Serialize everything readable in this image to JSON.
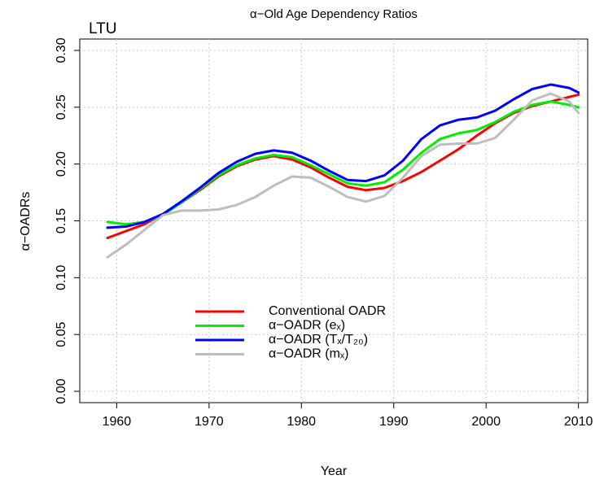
{
  "chart_data": {
    "type": "line",
    "title": "α−Old Age Dependency Ratios",
    "annotation": "LTU",
    "xlabel": "Year",
    "ylabel": "α−OADRs",
    "x": [
      1959,
      1961,
      1963,
      1965,
      1967,
      1969,
      1971,
      1973,
      1975,
      1977,
      1979,
      1981,
      1983,
      1985,
      1987,
      1989,
      1991,
      1993,
      1995,
      1997,
      1999,
      2001,
      2003,
      2005,
      2007,
      2009,
      2010
    ],
    "series": [
      {
        "name": "Conventional OADR",
        "color": "#ff0000",
        "values": [
          0.135,
          0.141,
          0.147,
          0.156,
          0.166,
          0.177,
          0.189,
          0.198,
          0.204,
          0.207,
          0.204,
          0.197,
          0.188,
          0.18,
          0.177,
          0.179,
          0.185,
          0.193,
          0.203,
          0.213,
          0.225,
          0.236,
          0.245,
          0.251,
          0.255,
          0.259,
          0.261
        ]
      },
      {
        "name": "α−OADR (eₓ)",
        "color": "#00ee00",
        "values": [
          0.149,
          0.147,
          0.149,
          0.155,
          0.166,
          0.178,
          0.19,
          0.199,
          0.205,
          0.208,
          0.206,
          0.199,
          0.191,
          0.183,
          0.181,
          0.184,
          0.195,
          0.21,
          0.222,
          0.227,
          0.23,
          0.237,
          0.246,
          0.252,
          0.255,
          0.252,
          0.25
        ]
      },
      {
        "name": "α−OADR (Tₓ/T₂₀)",
        "color": "#0000ff",
        "values": [
          0.144,
          0.145,
          0.149,
          0.156,
          0.167,
          0.179,
          0.192,
          0.202,
          0.209,
          0.212,
          0.21,
          0.203,
          0.194,
          0.186,
          0.185,
          0.19,
          0.203,
          0.222,
          0.234,
          0.239,
          0.241,
          0.247,
          0.257,
          0.266,
          0.27,
          0.267,
          0.263
        ]
      },
      {
        "name": "α−OADR (mₓ)",
        "color": "#bebebe",
        "values": [
          0.118,
          0.129,
          0.142,
          0.155,
          0.159,
          0.159,
          0.16,
          0.164,
          0.171,
          0.181,
          0.189,
          0.188,
          0.18,
          0.171,
          0.167,
          0.172,
          0.188,
          0.207,
          0.217,
          0.218,
          0.218,
          0.223,
          0.239,
          0.256,
          0.262,
          0.255,
          0.245
        ]
      }
    ],
    "xlim": [
      1956,
      2011
    ],
    "ylim": [
      -0.01,
      0.31
    ],
    "xticks": [
      1960,
      1970,
      1980,
      1990,
      2000,
      2010
    ],
    "yticks": [
      {
        "value": 0,
        "label": "0.00"
      },
      {
        "value": 0.05,
        "label": "0.05"
      },
      {
        "value": 0.1,
        "label": "0.10"
      },
      {
        "value": 0.15,
        "label": "0.15"
      },
      {
        "value": 0.2,
        "label": "0.20"
      },
      {
        "value": 0.25,
        "label": "0.25"
      },
      {
        "value": 0.3,
        "label": "0.30"
      }
    ],
    "grid": true
  }
}
